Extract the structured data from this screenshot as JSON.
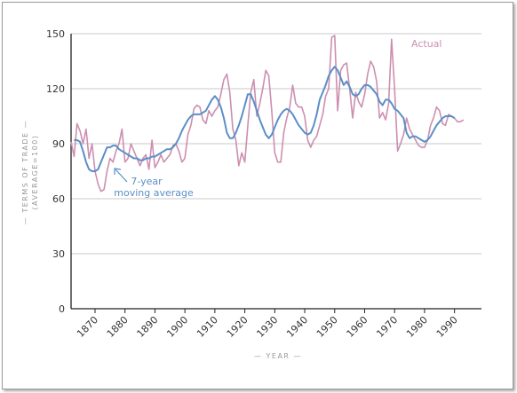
{
  "chart_data": {
    "type": "line",
    "title": "",
    "xlabel": "YEAR",
    "ylabel_line1": "TERMS OF TRADE",
    "ylabel_line2": "(AVERAGE=100)",
    "xlim": [
      1862,
      1999
    ],
    "ylim": [
      0,
      150
    ],
    "x_ticks": [
      1870,
      1880,
      1890,
      1900,
      1910,
      1920,
      1930,
      1940,
      1950,
      1960,
      1970,
      1980,
      1990
    ],
    "y_ticks": [
      0,
      30,
      60,
      90,
      120,
      150
    ],
    "grid": "horizontal",
    "colors": {
      "actual": "#cc8fb0",
      "moving_average": "#5b8fc7",
      "grid": "#c8c8c8",
      "axis": "#222222"
    },
    "labels": {
      "actual": "Actual",
      "moving_average_line1": "7-year",
      "moving_average_line2": "moving average"
    },
    "series": [
      {
        "key": "actual",
        "name": "Actual",
        "points": [
          [
            1862,
            91
          ],
          [
            1863,
            83
          ],
          [
            1864,
            101
          ],
          [
            1865,
            97
          ],
          [
            1866,
            90
          ],
          [
            1867,
            98
          ],
          [
            1868,
            82
          ],
          [
            1869,
            90
          ],
          [
            1870,
            75
          ],
          [
            1871,
            68
          ],
          [
            1872,
            64
          ],
          [
            1873,
            65
          ],
          [
            1874,
            75
          ],
          [
            1875,
            82
          ],
          [
            1876,
            80
          ],
          [
            1877,
            86
          ],
          [
            1878,
            90
          ],
          [
            1879,
            98
          ],
          [
            1880,
            80
          ],
          [
            1881,
            82
          ],
          [
            1882,
            90
          ],
          [
            1883,
            86
          ],
          [
            1884,
            82
          ],
          [
            1885,
            78
          ],
          [
            1886,
            82
          ],
          [
            1887,
            84
          ],
          [
            1888,
            76
          ],
          [
            1889,
            92
          ],
          [
            1890,
            77
          ],
          [
            1891,
            80
          ],
          [
            1892,
            84
          ],
          [
            1893,
            80
          ],
          [
            1894,
            82
          ],
          [
            1895,
            84
          ],
          [
            1896,
            89
          ],
          [
            1897,
            90
          ],
          [
            1898,
            86
          ],
          [
            1899,
            80
          ],
          [
            1900,
            82
          ],
          [
            1901,
            95
          ],
          [
            1902,
            100
          ],
          [
            1903,
            109
          ],
          [
            1904,
            111
          ],
          [
            1905,
            110
          ],
          [
            1906,
            103
          ],
          [
            1907,
            101
          ],
          [
            1908,
            108
          ],
          [
            1909,
            105
          ],
          [
            1910,
            108
          ],
          [
            1911,
            110
          ],
          [
            1912,
            117
          ],
          [
            1913,
            125
          ],
          [
            1914,
            128
          ],
          [
            1915,
            118
          ],
          [
            1916,
            98
          ],
          [
            1917,
            92
          ],
          [
            1918,
            78
          ],
          [
            1919,
            85
          ],
          [
            1920,
            80
          ],
          [
            1921,
            100
          ],
          [
            1922,
            118
          ],
          [
            1923,
            125
          ],
          [
            1924,
            105
          ],
          [
            1925,
            112
          ],
          [
            1926,
            120
          ],
          [
            1927,
            130
          ],
          [
            1928,
            127
          ],
          [
            1929,
            108
          ],
          [
            1930,
            85
          ],
          [
            1931,
            80
          ],
          [
            1932,
            80
          ],
          [
            1933,
            96
          ],
          [
            1934,
            104
          ],
          [
            1935,
            110
          ],
          [
            1936,
            122
          ],
          [
            1937,
            112
          ],
          [
            1938,
            110
          ],
          [
            1939,
            110
          ],
          [
            1940,
            105
          ],
          [
            1941,
            92
          ],
          [
            1942,
            88
          ],
          [
            1943,
            92
          ],
          [
            1944,
            94
          ],
          [
            1945,
            100
          ],
          [
            1946,
            106
          ],
          [
            1947,
            116
          ],
          [
            1948,
            120
          ],
          [
            1949,
            148
          ],
          [
            1950,
            149
          ],
          [
            1951,
            108
          ],
          [
            1952,
            130
          ],
          [
            1953,
            133
          ],
          [
            1954,
            134
          ],
          [
            1955,
            120
          ],
          [
            1956,
            104
          ],
          [
            1957,
            118
          ],
          [
            1958,
            113
          ],
          [
            1959,
            110
          ],
          [
            1960,
            117
          ],
          [
            1961,
            128
          ],
          [
            1962,
            135
          ],
          [
            1963,
            132
          ],
          [
            1964,
            124
          ],
          [
            1965,
            104
          ],
          [
            1966,
            107
          ],
          [
            1967,
            103
          ],
          [
            1968,
            112
          ],
          [
            1969,
            147
          ],
          [
            1970,
            120
          ],
          [
            1971,
            86
          ],
          [
            1972,
            90
          ],
          [
            1973,
            95
          ],
          [
            1974,
            104
          ],
          [
            1975,
            98
          ],
          [
            1976,
            95
          ],
          [
            1977,
            92
          ],
          [
            1978,
            89
          ],
          [
            1979,
            88
          ],
          [
            1980,
            88
          ],
          [
            1981,
            92
          ],
          [
            1982,
            100
          ],
          [
            1983,
            104
          ],
          [
            1984,
            110
          ],
          [
            1985,
            108
          ],
          [
            1986,
            101
          ],
          [
            1987,
            100
          ],
          [
            1988,
            106
          ],
          [
            1989,
            105
          ],
          [
            1990,
            104
          ],
          [
            1991,
            102
          ],
          [
            1992,
            102
          ],
          [
            1993,
            103
          ]
        ]
      },
      {
        "key": "moving_average",
        "name": "7-year moving average",
        "points": [
          [
            1863,
            92
          ],
          [
            1864,
            92
          ],
          [
            1865,
            91
          ],
          [
            1866,
            86
          ],
          [
            1867,
            80
          ],
          [
            1868,
            76
          ],
          [
            1869,
            75
          ],
          [
            1870,
            75
          ],
          [
            1871,
            76
          ],
          [
            1872,
            80
          ],
          [
            1873,
            84
          ],
          [
            1874,
            88
          ],
          [
            1875,
            88
          ],
          [
            1876,
            89
          ],
          [
            1877,
            89
          ],
          [
            1878,
            87
          ],
          [
            1879,
            86
          ],
          [
            1880,
            85
          ],
          [
            1881,
            84
          ],
          [
            1882,
            83
          ],
          [
            1883,
            82
          ],
          [
            1884,
            82
          ],
          [
            1885,
            81
          ],
          [
            1886,
            81
          ],
          [
            1887,
            82
          ],
          [
            1888,
            82
          ],
          [
            1889,
            83
          ],
          [
            1890,
            83
          ],
          [
            1891,
            84
          ],
          [
            1892,
            85
          ],
          [
            1893,
            86
          ],
          [
            1894,
            87
          ],
          [
            1895,
            87
          ],
          [
            1896,
            88
          ],
          [
            1897,
            90
          ],
          [
            1898,
            93
          ],
          [
            1899,
            97
          ],
          [
            1900,
            100
          ],
          [
            1901,
            103
          ],
          [
            1902,
            105
          ],
          [
            1903,
            106
          ],
          [
            1904,
            106
          ],
          [
            1905,
            106
          ],
          [
            1906,
            107
          ],
          [
            1907,
            108
          ],
          [
            1908,
            111
          ],
          [
            1909,
            114
          ],
          [
            1910,
            116
          ],
          [
            1911,
            114
          ],
          [
            1912,
            110
          ],
          [
            1913,
            104
          ],
          [
            1914,
            96
          ],
          [
            1915,
            93
          ],
          [
            1916,
            93
          ],
          [
            1917,
            96
          ],
          [
            1918,
            100
          ],
          [
            1919,
            105
          ],
          [
            1920,
            111
          ],
          [
            1921,
            117
          ],
          [
            1922,
            117
          ],
          [
            1923,
            113
          ],
          [
            1924,
            108
          ],
          [
            1925,
            103
          ],
          [
            1926,
            99
          ],
          [
            1927,
            95
          ],
          [
            1928,
            93
          ],
          [
            1929,
            95
          ],
          [
            1930,
            99
          ],
          [
            1931,
            103
          ],
          [
            1932,
            106
          ],
          [
            1933,
            108
          ],
          [
            1934,
            109
          ],
          [
            1935,
            108
          ],
          [
            1936,
            106
          ],
          [
            1937,
            103
          ],
          [
            1938,
            100
          ],
          [
            1939,
            98
          ],
          [
            1940,
            96
          ],
          [
            1941,
            95
          ],
          [
            1942,
            96
          ],
          [
            1943,
            100
          ],
          [
            1944,
            106
          ],
          [
            1945,
            114
          ],
          [
            1946,
            118
          ],
          [
            1947,
            122
          ],
          [
            1948,
            127
          ],
          [
            1949,
            130
          ],
          [
            1950,
            132
          ],
          [
            1951,
            130
          ],
          [
            1952,
            126
          ],
          [
            1953,
            122
          ],
          [
            1954,
            124
          ],
          [
            1955,
            121
          ],
          [
            1956,
            117
          ],
          [
            1957,
            116
          ],
          [
            1958,
            117
          ],
          [
            1959,
            120
          ],
          [
            1960,
            122
          ],
          [
            1961,
            122
          ],
          [
            1962,
            121
          ],
          [
            1963,
            119
          ],
          [
            1964,
            117
          ],
          [
            1965,
            113
          ],
          [
            1966,
            111
          ],
          [
            1967,
            114
          ],
          [
            1968,
            114
          ],
          [
            1969,
            112
          ],
          [
            1970,
            109
          ],
          [
            1971,
            108
          ],
          [
            1972,
            106
          ],
          [
            1973,
            104
          ],
          [
            1974,
            96
          ],
          [
            1975,
            93
          ],
          [
            1976,
            94
          ],
          [
            1977,
            94
          ],
          [
            1978,
            93
          ],
          [
            1979,
            92
          ],
          [
            1980,
            91
          ],
          [
            1981,
            92
          ],
          [
            1982,
            94
          ],
          [
            1983,
            97
          ],
          [
            1984,
            100
          ],
          [
            1985,
            102
          ],
          [
            1986,
            104
          ],
          [
            1987,
            105
          ],
          [
            1988,
            105
          ],
          [
            1989,
            105
          ],
          [
            1990,
            104
          ]
        ]
      }
    ]
  }
}
